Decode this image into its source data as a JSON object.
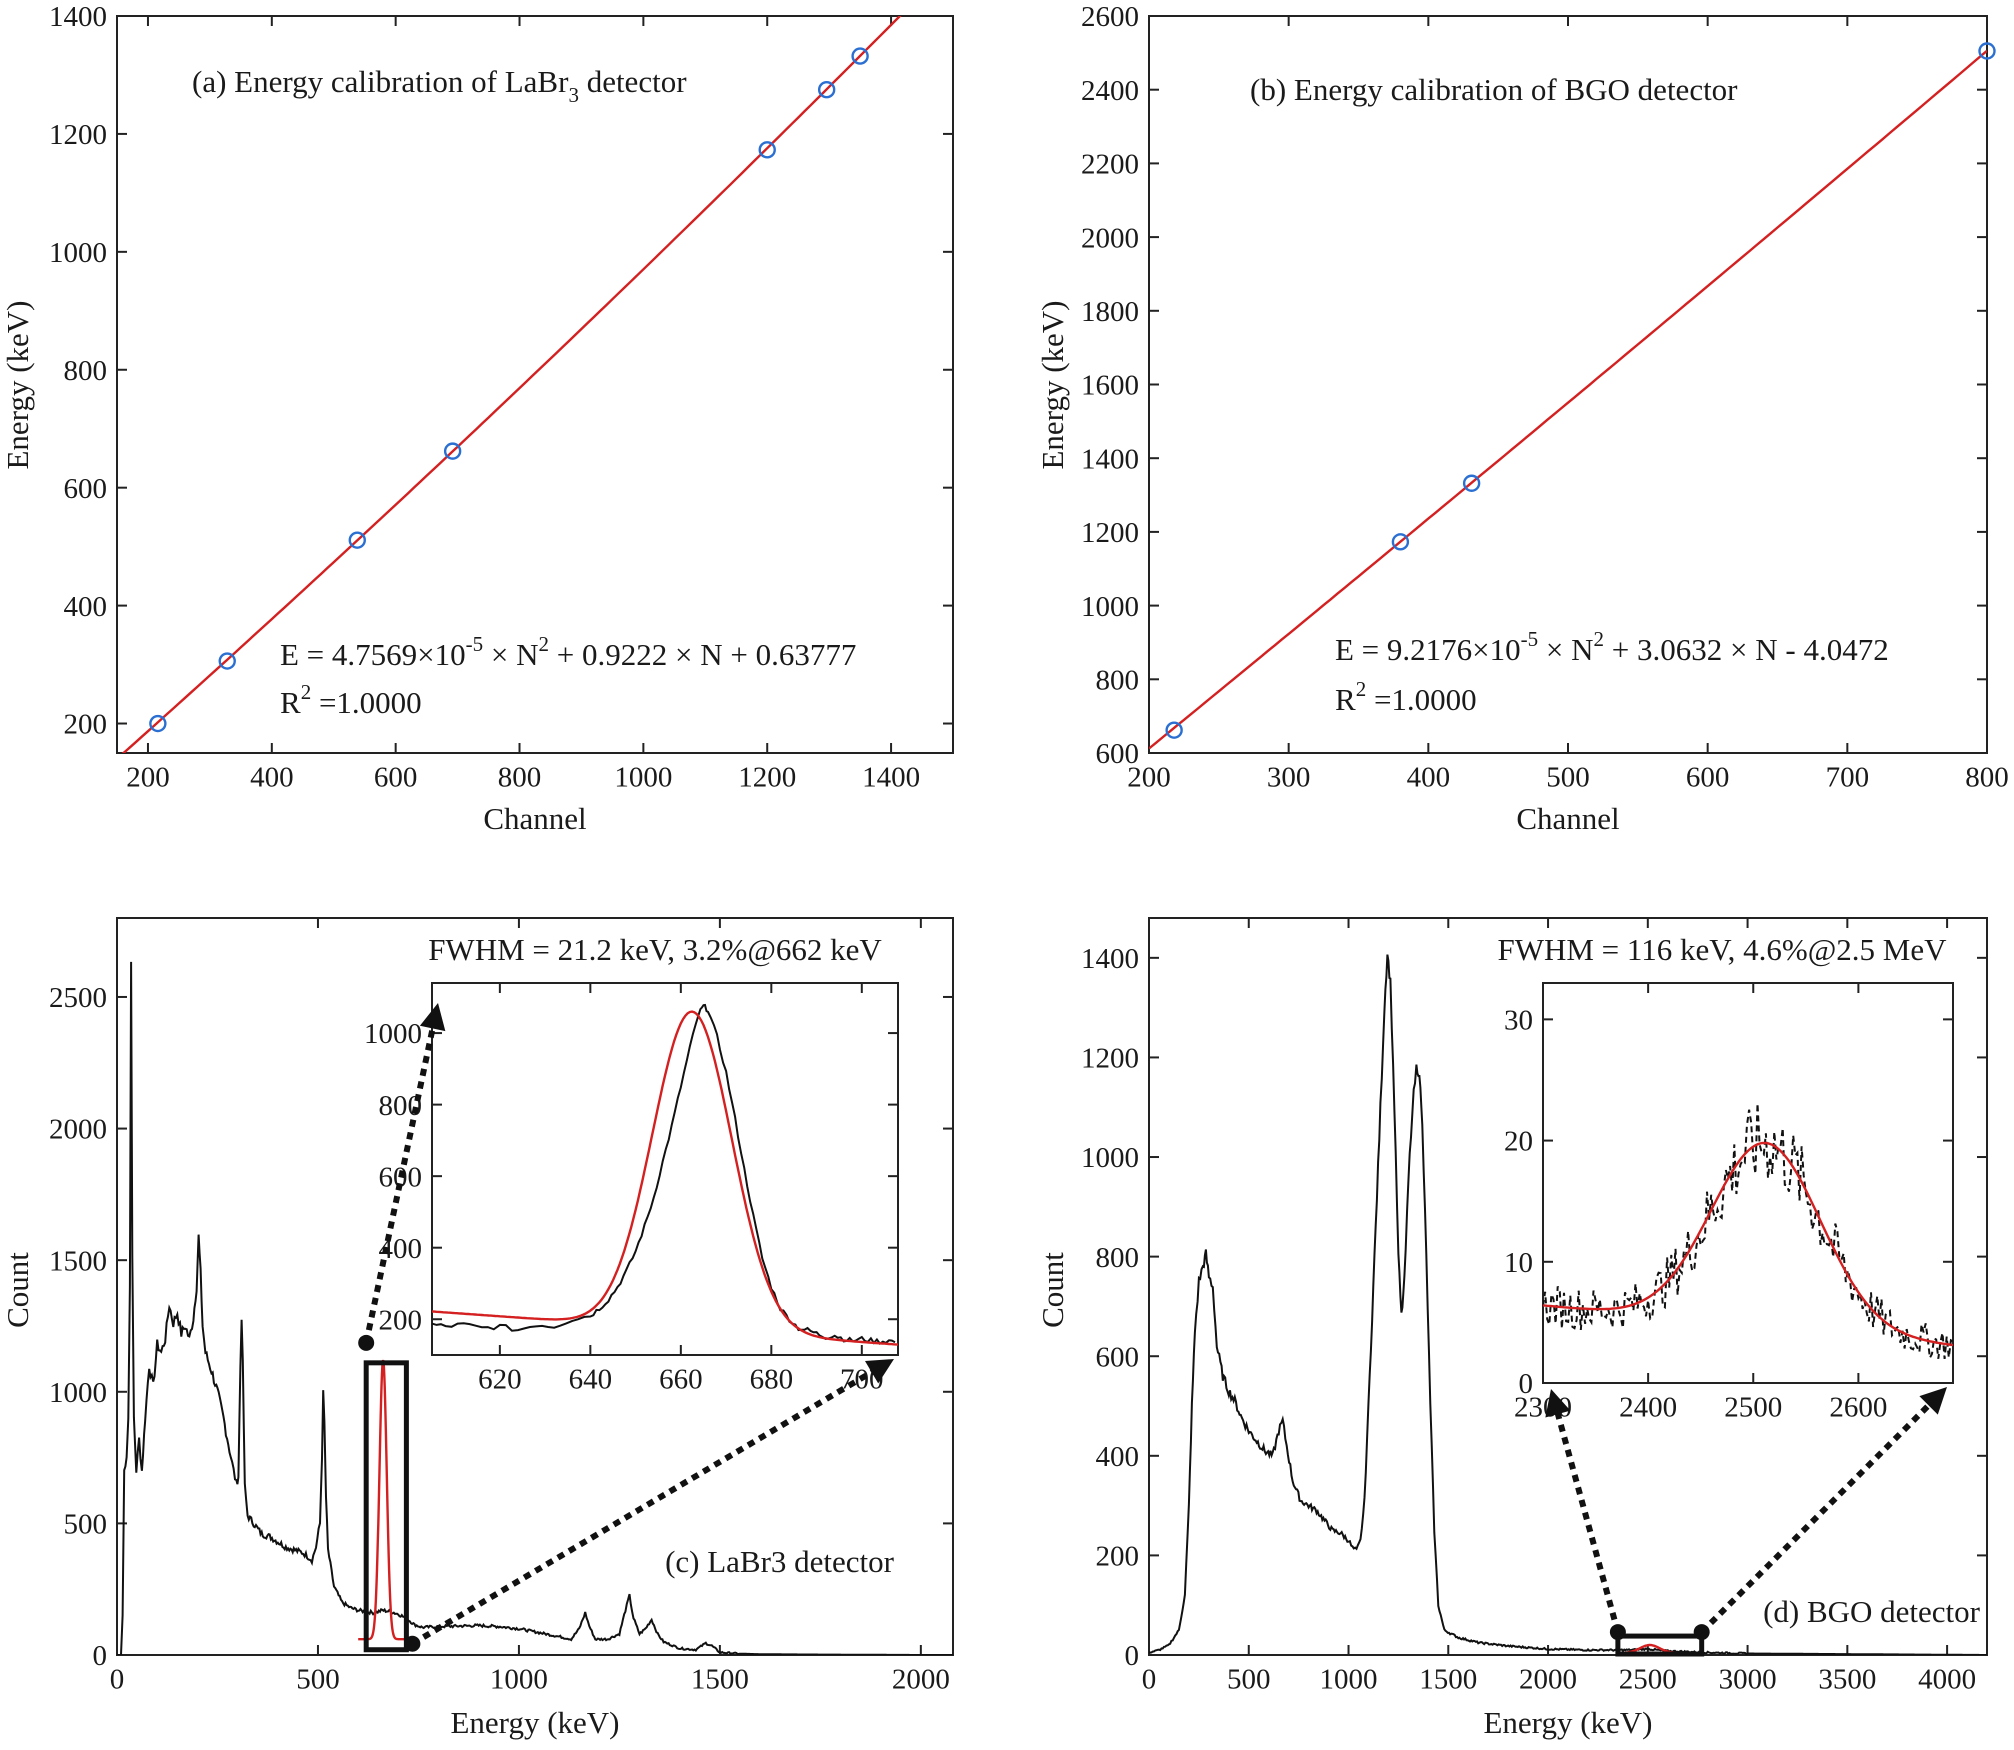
{
  "chart_data": [
    {
      "id": "a",
      "type": "scatter",
      "title": "(a) Energy calibration of LaBr3 detector",
      "title_main": "(a) Energy calibration of LaBr",
      "title_sub": "3",
      "title_tail": " detector",
      "xlabel": "Channel",
      "ylabel": "Energy (keV)",
      "xlim": [
        150,
        1500
      ],
      "ylim": [
        150,
        1400
      ],
      "xticks": [
        200,
        400,
        600,
        800,
        1000,
        1200,
        1400
      ],
      "yticks": [
        200,
        400,
        600,
        800,
        1000,
        1200,
        1400
      ],
      "points": [
        {
          "x": 216,
          "y": 200
        },
        {
          "x": 328,
          "y": 306
        },
        {
          "x": 538,
          "y": 511
        },
        {
          "x": 692,
          "y": 662
        },
        {
          "x": 1200,
          "y": 1173
        },
        {
          "x": 1296,
          "y": 1275
        },
        {
          "x": 1350,
          "y": 1332
        }
      ],
      "fit": {
        "a": 4.7569e-05,
        "b": 0.9222,
        "c": 0.63777
      },
      "equation": {
        "lhs": "E = 4.7569×10",
        "exp": "-5",
        "mid": " × N",
        "pow": "2",
        "rhs": " + 0.9222 × N + 0.63777"
      },
      "r2": {
        "lhs": "R",
        "pow": "2",
        "rhs": " =1.0000"
      },
      "colors": {
        "points": "#2a6fd1",
        "fit": "#d42020"
      }
    },
    {
      "id": "b",
      "type": "scatter",
      "title": "(b) Energy calibration of BGO detector",
      "xlabel": "Channel",
      "ylabel": "Energy (keV)",
      "xlim": [
        200,
        800
      ],
      "ylim": [
        600,
        2600
      ],
      "xticks": [
        200,
        300,
        400,
        500,
        600,
        700,
        800
      ],
      "yticks": [
        600,
        800,
        1000,
        1200,
        1400,
        1600,
        1800,
        2000,
        2200,
        2400,
        2600
      ],
      "points": [
        {
          "x": 218,
          "y": 662
        },
        {
          "x": 380,
          "y": 1173
        },
        {
          "x": 431,
          "y": 1332
        },
        {
          "x": 800,
          "y": 2505
        }
      ],
      "fit": {
        "a": 9.2176e-05,
        "b": 3.0632,
        "c": -4.0472
      },
      "equation": {
        "lhs": "E = 9.2176×10",
        "exp": "-5",
        "mid": " × N",
        "pow": "2",
        "rhs": " + 3.0632 × N - 4.0472"
      },
      "r2": {
        "lhs": "R",
        "pow": "2",
        "rhs": " =1.0000"
      },
      "colors": {
        "points": "#2a6fd1",
        "fit": "#d42020"
      }
    },
    {
      "id": "c",
      "type": "line",
      "label": "(c) LaBr3 detector",
      "annotation": "FWHM = 21.2 keV, 3.2%@662 keV",
      "xlabel": "Energy (keV)",
      "ylabel": "Count",
      "xlim": [
        0,
        2080
      ],
      "ylim": [
        0,
        2800
      ],
      "xticks": [
        0,
        500,
        1000,
        1500,
        2000
      ],
      "yticks": [
        0,
        500,
        1000,
        1500,
        2000,
        2500
      ],
      "spectrum": [
        [
          0,
          0
        ],
        [
          10,
          0
        ],
        [
          14,
          150
        ],
        [
          18,
          700
        ],
        [
          24,
          760
        ],
        [
          28,
          900
        ],
        [
          32,
          1400
        ],
        [
          35,
          2650
        ],
        [
          38,
          1500
        ],
        [
          42,
          900
        ],
        [
          48,
          700
        ],
        [
          55,
          820
        ],
        [
          62,
          700
        ],
        [
          70,
          900
        ],
        [
          80,
          1100
        ],
        [
          90,
          1020
        ],
        [
          100,
          1180
        ],
        [
          110,
          1150
        ],
        [
          120,
          1200
        ],
        [
          130,
          1330
        ],
        [
          140,
          1260
        ],
        [
          150,
          1300
        ],
        [
          160,
          1220
        ],
        [
          170,
          1250
        ],
        [
          180,
          1200
        ],
        [
          190,
          1280
        ],
        [
          198,
          1400
        ],
        [
          203,
          1590
        ],
        [
          208,
          1450
        ],
        [
          213,
          1250
        ],
        [
          220,
          1150
        ],
        [
          235,
          1080
        ],
        [
          250,
          1000
        ],
        [
          265,
          900
        ],
        [
          280,
          780
        ],
        [
          290,
          700
        ],
        [
          297,
          650
        ],
        [
          302,
          680
        ],
        [
          307,
          1100
        ],
        [
          310,
          1290
        ],
        [
          313,
          1100
        ],
        [
          318,
          640
        ],
        [
          325,
          530
        ],
        [
          340,
          500
        ],
        [
          360,
          460
        ],
        [
          380,
          450
        ],
        [
          400,
          430
        ],
        [
          420,
          410
        ],
        [
          440,
          400
        ],
        [
          460,
          390
        ],
        [
          470,
          380
        ],
        [
          485,
          360
        ],
        [
          495,
          410
        ],
        [
          505,
          500
        ],
        [
          510,
          760
        ],
        [
          513,
          990
        ],
        [
          516,
          880
        ],
        [
          520,
          600
        ],
        [
          525,
          400
        ],
        [
          540,
          260
        ],
        [
          560,
          200
        ],
        [
          580,
          180
        ],
        [
          600,
          170
        ],
        [
          620,
          165
        ],
        [
          640,
          160
        ],
        [
          660,
          170
        ],
        [
          680,
          165
        ],
        [
          700,
          155
        ],
        [
          720,
          140
        ],
        [
          740,
          115
        ],
        [
          760,
          105
        ],
        [
          800,
          108
        ],
        [
          850,
          110
        ],
        [
          900,
          112
        ],
        [
          950,
          108
        ],
        [
          1000,
          100
        ],
        [
          1050,
          85
        ],
        [
          1100,
          70
        ],
        [
          1130,
          60
        ],
        [
          1150,
          100
        ],
        [
          1165,
          160
        ],
        [
          1175,
          110
        ],
        [
          1190,
          60
        ],
        [
          1220,
          60
        ],
        [
          1250,
          80
        ],
        [
          1265,
          170
        ],
        [
          1275,
          225
        ],
        [
          1285,
          140
        ],
        [
          1300,
          80
        ],
        [
          1315,
          100
        ],
        [
          1330,
          135
        ],
        [
          1345,
          80
        ],
        [
          1360,
          50
        ],
        [
          1400,
          25
        ],
        [
          1440,
          20
        ],
        [
          1465,
          45
        ],
        [
          1480,
          35
        ],
        [
          1500,
          10
        ],
        [
          1550,
          5
        ],
        [
          1600,
          3
        ],
        [
          1700,
          2
        ],
        [
          2000,
          0
        ],
        [
          2080,
          0
        ]
      ],
      "peak_fit": {
        "center": 662,
        "sigma": 9.0,
        "amplitude": 1060,
        "baseline": 60,
        "range": [
          600,
          725
        ]
      },
      "zoom_box": {
        "x": [
          620,
          720
        ],
        "y": [
          20,
          1110
        ]
      },
      "inset": {
        "xlim": [
          605,
          708
        ],
        "ylim": [
          100,
          1140
        ],
        "xticks": [
          620,
          640,
          660,
          680,
          700
        ],
        "yticks": [
          200,
          400,
          600,
          800,
          1000
        ],
        "curve": [
          [
            605,
            185
          ],
          [
            608,
            180
          ],
          [
            612,
            185
          ],
          [
            616,
            175
          ],
          [
            620,
            180
          ],
          [
            624,
            170
          ],
          [
            628,
            185
          ],
          [
            632,
            180
          ],
          [
            636,
            200
          ],
          [
            640,
            210
          ],
          [
            642,
            230
          ],
          [
            644,
            255
          ],
          [
            646,
            290
          ],
          [
            648,
            335
          ],
          [
            650,
            390
          ],
          [
            652,
            460
          ],
          [
            654,
            540
          ],
          [
            656,
            640
          ],
          [
            658,
            740
          ],
          [
            660,
            850
          ],
          [
            662,
            960
          ],
          [
            664,
            1055
          ],
          [
            665,
            1075
          ],
          [
            666,
            1065
          ],
          [
            668,
            990
          ],
          [
            670,
            890
          ],
          [
            672,
            760
          ],
          [
            674,
            620
          ],
          [
            676,
            490
          ],
          [
            678,
            370
          ],
          [
            680,
            290
          ],
          [
            682,
            230
          ],
          [
            684,
            200
          ],
          [
            686,
            175
          ],
          [
            688,
            170
          ],
          [
            690,
            160
          ],
          [
            692,
            150
          ],
          [
            694,
            155
          ],
          [
            696,
            145
          ],
          [
            698,
            140
          ],
          [
            700,
            145
          ],
          [
            702,
            140
          ],
          [
            704,
            138
          ],
          [
            706,
            140
          ],
          [
            708,
            135
          ]
        ],
        "fit": {
          "center": 662.5,
          "sigma": 8.8,
          "amplitude": 890,
          "baseline": 170,
          "slope": -0.9
        }
      },
      "colors": {
        "spectrum": "#111111",
        "fit": "#d42020"
      }
    },
    {
      "id": "d",
      "type": "line",
      "label": "(d) BGO detector",
      "annotation": "FWHM = 116 keV, 4.6%@2.5 MeV",
      "xlabel": "Energy (keV)",
      "ylabel": "Count",
      "xlim": [
        0,
        4200
      ],
      "ylim": [
        0,
        1480
      ],
      "xticks": [
        0,
        500,
        1000,
        1500,
        2000,
        2500,
        3000,
        3500,
        4000
      ],
      "yticks": [
        0,
        200,
        400,
        600,
        800,
        1000,
        1200,
        1400
      ],
      "spectrum": [
        [
          0,
          5
        ],
        [
          50,
          10
        ],
        [
          100,
          20
        ],
        [
          150,
          50
        ],
        [
          180,
          120
        ],
        [
          200,
          300
        ],
        [
          215,
          500
        ],
        [
          230,
          650
        ],
        [
          250,
          750
        ],
        [
          270,
          780
        ],
        [
          285,
          805
        ],
        [
          300,
          760
        ],
        [
          320,
          740
        ],
        [
          340,
          620
        ],
        [
          370,
          560
        ],
        [
          400,
          530
        ],
        [
          430,
          510
        ],
        [
          460,
          480
        ],
        [
          500,
          450
        ],
        [
          540,
          430
        ],
        [
          580,
          410
        ],
        [
          620,
          400
        ],
        [
          650,
          450
        ],
        [
          670,
          470
        ],
        [
          690,
          420
        ],
        [
          720,
          350
        ],
        [
          760,
          310
        ],
        [
          800,
          300
        ],
        [
          840,
          290
        ],
        [
          880,
          270
        ],
        [
          920,
          250
        ],
        [
          960,
          245
        ],
        [
          1000,
          230
        ],
        [
          1020,
          215
        ],
        [
          1040,
          210
        ],
        [
          1060,
          230
        ],
        [
          1080,
          310
        ],
        [
          1100,
          500
        ],
        [
          1130,
          800
        ],
        [
          1160,
          1100
        ],
        [
          1180,
          1300
        ],
        [
          1195,
          1410
        ],
        [
          1210,
          1350
        ],
        [
          1230,
          1100
        ],
        [
          1250,
          800
        ],
        [
          1265,
          680
        ],
        [
          1280,
          750
        ],
        [
          1300,
          950
        ],
        [
          1320,
          1100
        ],
        [
          1340,
          1180
        ],
        [
          1355,
          1170
        ],
        [
          1370,
          1060
        ],
        [
          1390,
          800
        ],
        [
          1410,
          500
        ],
        [
          1430,
          250
        ],
        [
          1450,
          100
        ],
        [
          1480,
          50
        ],
        [
          1550,
          35
        ],
        [
          1650,
          25
        ],
        [
          1800,
          18
        ],
        [
          2000,
          12
        ],
        [
          2200,
          10
        ],
        [
          2400,
          10
        ],
        [
          2500,
          12
        ],
        [
          2600,
          8
        ],
        [
          2800,
          5
        ],
        [
          3000,
          3
        ],
        [
          3400,
          2
        ],
        [
          4200,
          0
        ]
      ],
      "peak_fit": {
        "center": 2510,
        "sigma": 49,
        "amplitude": 16,
        "baseline": 4,
        "range": [
          2350,
          2700
        ]
      },
      "zoom_box": {
        "x": [
          2350,
          2770
        ],
        "y": [
          2,
          38
        ]
      },
      "inset": {
        "xlim": [
          2300,
          2690
        ],
        "ylim": [
          0,
          33
        ],
        "xticks": [
          2300,
          2400,
          2500,
          2600
        ],
        "yticks": [
          0,
          10,
          20,
          30
        ],
        "fit": {
          "center": 2512,
          "sigma": 52,
          "amplitude": 15.2,
          "baseline": 4.6,
          "slope": -0.0085
        }
      },
      "colors": {
        "spectrum": "#111111",
        "fit": "#d42020"
      }
    }
  ]
}
